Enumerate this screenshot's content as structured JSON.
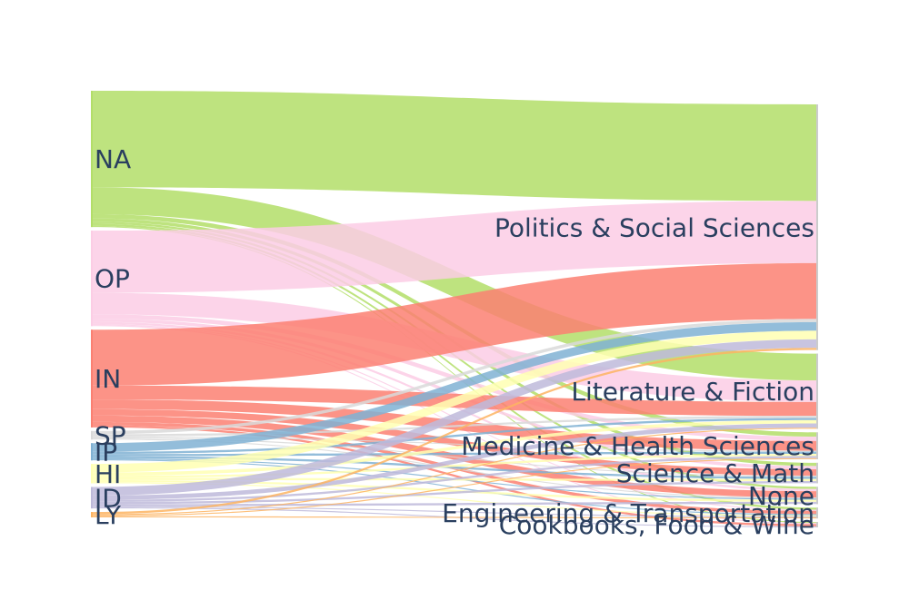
{
  "chart_data": {
    "type": "sankey",
    "sources": [
      {
        "id": "NA",
        "label": "NA",
        "color": "#b3de69"
      },
      {
        "id": "OP",
        "label": "OP",
        "color": "#fccde5"
      },
      {
        "id": "IN",
        "label": "IN",
        "color": "#fb8072"
      },
      {
        "id": "SP",
        "label": "SP",
        "color": "#d9d9d9"
      },
      {
        "id": "IP",
        "label": "IP",
        "color": "#80b1d3"
      },
      {
        "id": "HI",
        "label": "HI",
        "color": "#ffffb3"
      },
      {
        "id": "ID",
        "label": "ID",
        "color": "#bebada"
      },
      {
        "id": "LY",
        "label": "LY",
        "color": "#fdb462"
      }
    ],
    "targets": [
      {
        "id": "PSS",
        "label": "Politics & Social Sciences"
      },
      {
        "id": "LF",
        "label": "Literature & Fiction"
      },
      {
        "id": "MHS",
        "label": "Medicine & Health Sciences"
      },
      {
        "id": "SM",
        "label": "Science & Math"
      },
      {
        "id": "NONE",
        "label": "None"
      },
      {
        "id": "ET",
        "label": "Engineering & Transportation"
      },
      {
        "id": "CFW",
        "label": "Cookbooks, Food & Wine"
      }
    ],
    "links": [
      {
        "source": "NA",
        "target": "PSS",
        "value": 90
      },
      {
        "source": "NA",
        "target": "LF",
        "value": 25
      },
      {
        "source": "NA",
        "target": "MHS",
        "value": 4
      },
      {
        "source": "NA",
        "target": "SM",
        "value": 3
      },
      {
        "source": "NA",
        "target": "NONE",
        "value": 2
      },
      {
        "source": "NA",
        "target": "ET",
        "value": 2
      },
      {
        "source": "NA",
        "target": "CFW",
        "value": 1
      },
      {
        "source": "OP",
        "target": "PSS",
        "value": 58
      },
      {
        "source": "OP",
        "target": "LF",
        "value": 20
      },
      {
        "source": "OP",
        "target": "MHS",
        "value": 4
      },
      {
        "source": "OP",
        "target": "SM",
        "value": 3
      },
      {
        "source": "OP",
        "target": "NONE",
        "value": 2
      },
      {
        "source": "OP",
        "target": "ET",
        "value": 1
      },
      {
        "source": "OP",
        "target": "CFW",
        "value": 1
      },
      {
        "source": "IN",
        "target": "PSS",
        "value": 52
      },
      {
        "source": "IN",
        "target": "LF",
        "value": 13
      },
      {
        "source": "IN",
        "target": "MHS",
        "value": 9
      },
      {
        "source": "IN",
        "target": "SM",
        "value": 6
      },
      {
        "source": "IN",
        "target": "NONE",
        "value": 6
      },
      {
        "source": "IN",
        "target": "ET",
        "value": 3
      },
      {
        "source": "IN",
        "target": "CFW",
        "value": 2
      },
      {
        "source": "SP",
        "target": "PSS",
        "value": 3
      },
      {
        "source": "SP",
        "target": "LF",
        "value": 2
      },
      {
        "source": "SP",
        "target": "MHS",
        "value": 1
      },
      {
        "source": "SP",
        "target": "SM",
        "value": 1
      },
      {
        "source": "SP",
        "target": "NONE",
        "value": 1
      },
      {
        "source": "IP",
        "target": "PSS",
        "value": 8
      },
      {
        "source": "IP",
        "target": "LF",
        "value": 2
      },
      {
        "source": "IP",
        "target": "MHS",
        "value": 2
      },
      {
        "source": "IP",
        "target": "SM",
        "value": 2
      },
      {
        "source": "IP",
        "target": "NONE",
        "value": 1
      },
      {
        "source": "IP",
        "target": "ET",
        "value": 1
      },
      {
        "source": "HI",
        "target": "PSS",
        "value": 8
      },
      {
        "source": "HI",
        "target": "LF",
        "value": 3
      },
      {
        "source": "HI",
        "target": "MHS",
        "value": 2
      },
      {
        "source": "HI",
        "target": "SM",
        "value": 2
      },
      {
        "source": "HI",
        "target": "NONE",
        "value": 2
      },
      {
        "source": "HI",
        "target": "ET",
        "value": 1
      },
      {
        "source": "ID",
        "target": "PSS",
        "value": 8
      },
      {
        "source": "ID",
        "target": "LF",
        "value": 4
      },
      {
        "source": "ID",
        "target": "MHS",
        "value": 2
      },
      {
        "source": "ID",
        "target": "SM",
        "value": 2
      },
      {
        "source": "ID",
        "target": "NONE",
        "value": 2
      },
      {
        "source": "ID",
        "target": "ET",
        "value": 1
      },
      {
        "source": "ID",
        "target": "CFW",
        "value": 1
      },
      {
        "source": "LY",
        "target": "PSS",
        "value": 2
      },
      {
        "source": "LY",
        "target": "LF",
        "value": 1
      },
      {
        "source": "LY",
        "target": "MHS",
        "value": 1
      },
      {
        "source": "LY",
        "target": "ET",
        "value": 1
      }
    ]
  }
}
